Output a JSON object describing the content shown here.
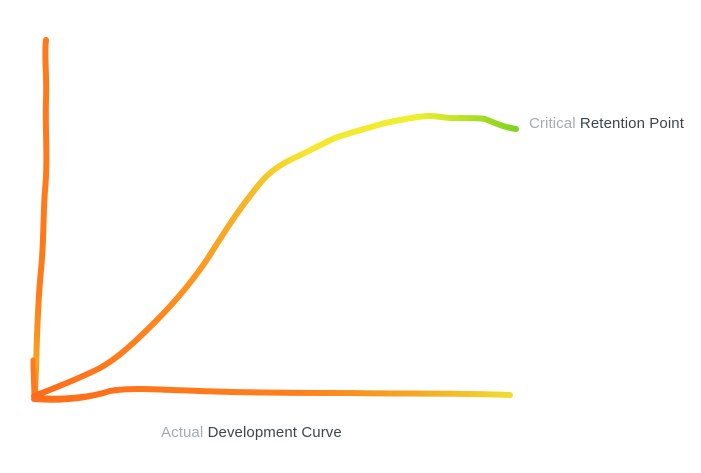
{
  "colors": {
    "orange": "#ff7a1a",
    "orange_light": "#f9a825",
    "yellow": "#f3ea2f",
    "green": "#7ed321",
    "muted_text": "#a3abb5",
    "dark_text": "#3c4650"
  },
  "annotations": {
    "top": {
      "muted": "Critical",
      "strong": "Retention Point"
    },
    "bottom": {
      "muted": "Actual",
      "strong": "Development Curve"
    }
  }
}
